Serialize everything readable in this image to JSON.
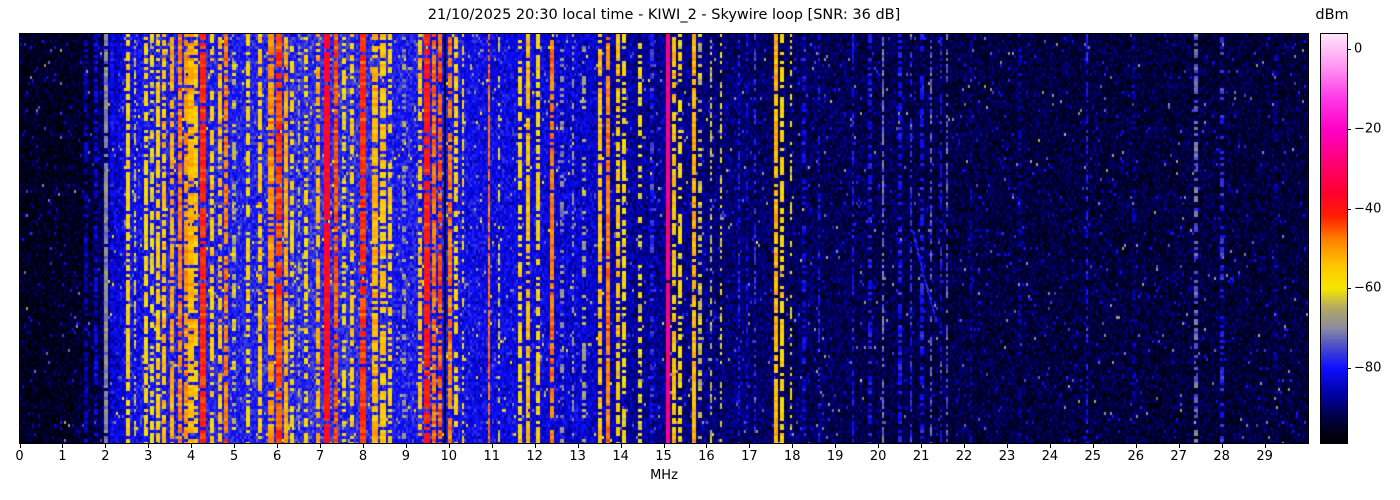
{
  "figure": {
    "title": "21/10/2025 20:30 local time - KIWI_2 - Skywire loop [SNR: 36 dB]",
    "datetime": "21/10/2025 20:30 local time",
    "station": "KIWI_2",
    "antenna": "Skywire loop",
    "snr_db": 36
  },
  "chart_data": {
    "type": "heatmap",
    "subtype": "radio-spectrum-waterfall",
    "title": "21/10/2025 20:30 local time - KIWI_2 - Skywire loop [SNR: 36 dB]",
    "xlabel": "MHz",
    "x_range_mhz": [
      0,
      30
    ],
    "x_tick_labels": [
      "0",
      "1",
      "2",
      "3",
      "4",
      "5",
      "6",
      "7",
      "8",
      "9",
      "10",
      "11",
      "12",
      "13",
      "14",
      "15",
      "16",
      "17",
      "18",
      "19",
      "20",
      "21",
      "22",
      "23",
      "24",
      "25",
      "26",
      "27",
      "28",
      "29"
    ],
    "y_axis_tick_labels_visible": false,
    "grid": false,
    "colorbar": {
      "label": "dBm",
      "position": "right",
      "tick_labels": [
        "0",
        "−20",
        "−40",
        "−60",
        "−80"
      ],
      "tick_values": [
        0,
        -20,
        -40,
        -60,
        -80
      ],
      "vmax": 3.75,
      "vmin": -98.75,
      "colormap_stops": [
        [
          -98.75,
          "#000000"
        ],
        [
          -93,
          "#00003c"
        ],
        [
          -87,
          "#0000a0"
        ],
        [
          -80,
          "#0f0fff"
        ],
        [
          -75,
          "#4848cf"
        ],
        [
          -70,
          "#8b8b9f"
        ],
        [
          -65,
          "#b2a964"
        ],
        [
          -60,
          "#f5e800"
        ],
        [
          -54,
          "#ffc400"
        ],
        [
          -48,
          "#ff8300"
        ],
        [
          -42,
          "#ff2000"
        ],
        [
          -36,
          "#ff0030"
        ],
        [
          -28,
          "#ff0078"
        ],
        [
          -20,
          "#ff00c8"
        ],
        [
          -12,
          "#ff3ce8"
        ],
        [
          -4,
          "#ff9af2"
        ],
        [
          3.75,
          "#ffe4fb"
        ]
      ]
    },
    "noise_floor_profile_mhz_dbm": [
      [
        0,
        -96
      ],
      [
        1.5,
        -95
      ],
      [
        1.8,
        -93
      ],
      [
        2.0,
        -90
      ],
      [
        2.2,
        -84
      ],
      [
        2.6,
        -81
      ],
      [
        3.2,
        -79.5
      ],
      [
        4.5,
        -79
      ],
      [
        5.5,
        -78.5
      ],
      [
        7.0,
        -77.5
      ],
      [
        8.0,
        -78
      ],
      [
        8.7,
        -79.5
      ],
      [
        9.3,
        -79
      ],
      [
        10.4,
        -81
      ],
      [
        11.5,
        -82
      ],
      [
        12.5,
        -83
      ],
      [
        13.3,
        -84
      ],
      [
        14.0,
        -86.5
      ],
      [
        15.0,
        -88
      ],
      [
        16.5,
        -90
      ],
      [
        18.0,
        -91
      ],
      [
        19.5,
        -92
      ],
      [
        22.0,
        -93
      ],
      [
        26.0,
        -93.5
      ],
      [
        30,
        -93.5
      ]
    ],
    "signals_format": [
      "freq_mhz",
      "width_mhz",
      "peak_dbm",
      "duty_fraction"
    ],
    "signals": [
      [
        1.55,
        0.03,
        -86,
        0.6
      ],
      [
        1.78,
        0.03,
        -84,
        0.6
      ],
      [
        2.0,
        0.035,
        -70,
        0.95
      ],
      [
        2.15,
        0.03,
        -82,
        0.7
      ],
      [
        2.5,
        0.05,
        -57,
        0.8
      ],
      [
        2.68,
        0.04,
        -63,
        0.5
      ],
      [
        2.95,
        0.05,
        -58,
        0.7
      ],
      [
        3.07,
        0.04,
        -60,
        0.6
      ],
      [
        3.2,
        0.05,
        -56,
        0.7
      ],
      [
        3.35,
        0.05,
        -54,
        0.75
      ],
      [
        3.55,
        0.07,
        -52,
        0.8
      ],
      [
        3.72,
        0.08,
        -48,
        0.85
      ],
      [
        3.85,
        0.05,
        -50,
        0.7
      ],
      [
        3.98,
        0.1,
        -53,
        0.8
      ],
      [
        4.12,
        0.05,
        -55,
        0.7
      ],
      [
        4.27,
        0.07,
        -42,
        0.95
      ],
      [
        4.45,
        0.05,
        -56,
        0.6
      ],
      [
        4.65,
        0.07,
        -54,
        0.7
      ],
      [
        4.8,
        0.08,
        -48,
        0.8
      ],
      [
        5.0,
        0.04,
        -64,
        0.5
      ],
      [
        5.3,
        0.05,
        -58,
        0.55
      ],
      [
        5.6,
        0.06,
        -55,
        0.7
      ],
      [
        5.85,
        0.07,
        -50,
        0.8
      ],
      [
        6.02,
        0.09,
        -44,
        0.9
      ],
      [
        6.18,
        0.06,
        -52,
        0.8
      ],
      [
        6.32,
        0.05,
        -57,
        0.55
      ],
      [
        6.5,
        0.04,
        -65,
        0.5
      ],
      [
        6.65,
        0.05,
        -58,
        0.5
      ],
      [
        6.95,
        0.06,
        -53,
        0.7
      ],
      [
        7.15,
        0.12,
        -38,
        0.97
      ],
      [
        7.36,
        0.07,
        -45,
        0.9
      ],
      [
        7.55,
        0.04,
        -60,
        0.5
      ],
      [
        7.75,
        0.05,
        -56,
        0.6
      ],
      [
        8.0,
        0.08,
        -43,
        0.9
      ],
      [
        8.25,
        0.1,
        -53,
        0.8
      ],
      [
        8.45,
        0.08,
        -55,
        0.7
      ],
      [
        8.62,
        0.05,
        -57,
        0.6
      ],
      [
        8.95,
        0.04,
        -68,
        0.4
      ],
      [
        9.33,
        0.05,
        -55,
        0.6
      ],
      [
        9.48,
        0.08,
        -41,
        0.9
      ],
      [
        9.63,
        0.07,
        -47,
        0.85
      ],
      [
        9.8,
        0.05,
        -45,
        0.8
      ],
      [
        10.02,
        0.06,
        -48,
        0.8
      ],
      [
        10.17,
        0.05,
        -57,
        0.6
      ],
      [
        10.32,
        0.04,
        -58,
        0.5
      ],
      [
        10.92,
        0.025,
        -47,
        0.9
      ],
      [
        11.15,
        0.03,
        -62,
        0.5
      ],
      [
        11.65,
        0.05,
        -57,
        0.7
      ],
      [
        11.85,
        0.06,
        -54,
        0.8
      ],
      [
        12.05,
        0.05,
        -57,
        0.65
      ],
      [
        12.4,
        0.022,
        -48,
        0.85
      ],
      [
        12.62,
        0.03,
        -70,
        0.4
      ],
      [
        12.88,
        0.03,
        -68,
        0.4
      ],
      [
        13.15,
        0.03,
        -66,
        0.4
      ],
      [
        13.52,
        0.06,
        -54,
        0.8
      ],
      [
        13.7,
        0.08,
        -48,
        0.9
      ],
      [
        13.92,
        0.05,
        -55,
        0.7
      ],
      [
        14.05,
        0.04,
        -58,
        0.6
      ],
      [
        14.45,
        0.04,
        -60,
        0.5
      ],
      [
        14.72,
        0.03,
        -78,
        0.5
      ],
      [
        15.1,
        0.04,
        -27,
        0.98
      ],
      [
        15.22,
        0.06,
        -54,
        0.75
      ],
      [
        15.38,
        0.04,
        -58,
        0.55
      ],
      [
        15.7,
        0.05,
        -53,
        0.9
      ],
      [
        15.85,
        0.03,
        -64,
        0.5
      ],
      [
        16.1,
        0.03,
        -64,
        0.45
      ],
      [
        16.32,
        0.03,
        -61,
        0.45
      ],
      [
        16.75,
        0.025,
        -80,
        0.5
      ],
      [
        16.92,
        0.02,
        -82,
        0.4
      ],
      [
        17.12,
        0.025,
        -78,
        0.5
      ],
      [
        17.6,
        0.06,
        -53,
        0.85
      ],
      [
        17.75,
        0.05,
        -57,
        0.7
      ],
      [
        17.95,
        0.03,
        -60,
        0.4
      ],
      [
        18.25,
        0.025,
        -82,
        0.5
      ],
      [
        18.6,
        0.022,
        -80,
        0.45
      ],
      [
        19.4,
        0.022,
        -80,
        0.5
      ],
      [
        19.8,
        0.02,
        -81,
        0.45
      ],
      [
        20.1,
        0.03,
        -72,
        0.7
      ],
      [
        20.5,
        0.025,
        -80,
        0.55
      ],
      [
        20.75,
        0.025,
        -78,
        0.55
      ],
      [
        21.0,
        0.025,
        -80,
        0.5
      ],
      [
        21.22,
        0.03,
        -74,
        0.6
      ],
      [
        21.45,
        0.02,
        -80,
        0.5
      ],
      [
        21.6,
        0.03,
        -74,
        0.6
      ],
      [
        22.15,
        0.02,
        -86,
        0.4
      ],
      [
        23.3,
        0.02,
        -87,
        0.35
      ],
      [
        24.85,
        0.025,
        -80,
        0.5
      ],
      [
        25.95,
        0.02,
        -88,
        0.3
      ],
      [
        27.4,
        0.03,
        -73,
        0.5
      ],
      [
        28.0,
        0.025,
        -78,
        0.4
      ],
      [
        29.25,
        0.02,
        -88,
        0.3
      ]
    ],
    "dark_lines_mhz": [
      [
        9.92,
        0.03
      ]
    ],
    "chirp_trace": {
      "f_start": 20.78,
      "f_end": 21.28,
      "t_start": 0.48,
      "t_end": 0.7,
      "level_dbm": -79
    },
    "noise": {
      "sigma_db": 3.2,
      "speckle_prob": 0.03,
      "speckle_gain_db": 9,
      "bright_speckle_prob": 0.008,
      "bright_speckle_gain_db": 19
    }
  }
}
